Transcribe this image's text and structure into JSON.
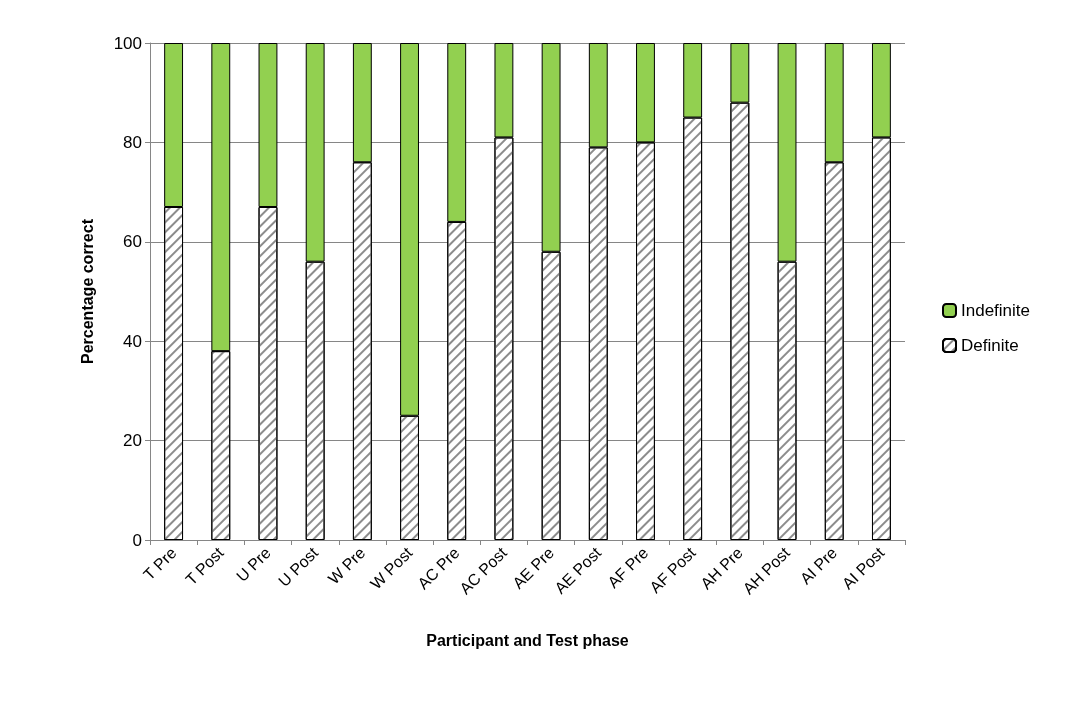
{
  "chart_data": {
    "type": "bar",
    "stacked": true,
    "xlabel": "Participant and Test phase",
    "ylabel": "Percentage correct",
    "categories": [
      "T Pre",
      "T Post",
      "U Pre",
      "U Post",
      "W Pre",
      "W Post",
      "AC Pre",
      "AC Post",
      "AE Pre",
      "AE Post",
      "AF Pre",
      "AF Post",
      "AH Pre",
      "AH Post",
      "AI Pre",
      "AI Post"
    ],
    "series": [
      {
        "name": "Definite",
        "color": "#ffffff",
        "values": [
          67,
          38,
          67,
          56,
          76,
          25,
          64,
          81,
          58,
          79,
          80,
          85,
          88,
          56,
          76,
          81
        ]
      },
      {
        "name": "Indefinite",
        "color": "#92d050",
        "values": [
          33,
          62,
          33,
          44,
          24,
          75,
          36,
          19,
          42,
          21,
          20,
          15,
          12,
          44,
          24,
          19
        ]
      }
    ],
    "ylim": [
      0,
      100
    ],
    "yticks": [
      0,
      20,
      40,
      60,
      80,
      100
    ],
    "grid": "y",
    "legend": "right"
  }
}
